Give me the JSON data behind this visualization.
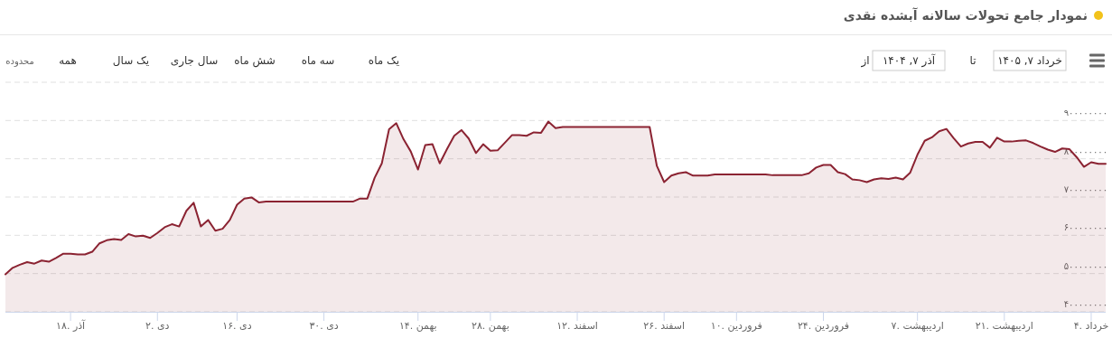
{
  "chart_data": {
    "type": "area",
    "title": "نمودار جامع تحولات سالانه آبشده نقدی",
    "annotations": [
      "از",
      "آذر ۷, ۱۴۰۴",
      "تا",
      "خرداد ۷, ۱۴۰۵",
      "یک ماه",
      "سه ماه",
      "شش ماه",
      "سال جاری",
      "یک سال",
      "همه",
      "محدوده"
    ],
    "color": "#8b2332",
    "grid": "y",
    "categories": [
      null,
      null,
      null,
      null,
      null,
      null,
      null,
      null,
      null,
      "۱۸. آذر",
      null,
      null,
      null,
      null,
      null,
      null,
      null,
      null,
      null,
      null,
      null,
      "۲. دی",
      null,
      null,
      null,
      null,
      null,
      null,
      null,
      null,
      null,
      null,
      "۱۶. دی",
      null,
      null,
      null,
      null,
      null,
      null,
      null,
      null,
      null,
      null,
      null,
      "۳۰. دی",
      null,
      null,
      null,
      null,
      null,
      null,
      null,
      null,
      null,
      null,
      null,
      null,
      "۱۴. بهمن",
      null,
      null,
      null,
      null,
      null,
      null,
      null,
      null,
      null,
      "۲۸. بهمن",
      null,
      null,
      null,
      null,
      null,
      null,
      null,
      null,
      null,
      null,
      null,
      "۱۲. اسفند",
      null,
      null,
      null,
      null,
      null,
      null,
      null,
      null,
      null,
      null,
      null,
      "۲۶. اسفند",
      null,
      null,
      null,
      null,
      null,
      null,
      null,
      null,
      null,
      "۱۰. فروردین",
      null,
      null,
      null,
      null,
      null,
      null,
      null,
      null,
      null,
      null,
      null,
      "۲۴. فروردین",
      null,
      null,
      null,
      null,
      null,
      null,
      null,
      null,
      null,
      null,
      null,
      null,
      "۷. اردیبهشت",
      null,
      null,
      null,
      null,
      null,
      null,
      null,
      null,
      null,
      null,
      null,
      "۲۱. اردیبهشت",
      null,
      null,
      null,
      null,
      null,
      null,
      null,
      null,
      null,
      null,
      null,
      "۴. خرداد",
      null,
      null
    ],
    "ylim": [
      400000000,
      1000000000
    ],
    "yticks": [
      {
        "value": 400000000,
        "label": "۴۰۰۰۰۰۰۰۰"
      },
      {
        "value": 500000000,
        "label": "۵۰۰۰۰۰۰۰۰"
      },
      {
        "value": 600000000,
        "label": "۶۰۰۰۰۰۰۰۰"
      },
      {
        "value": 700000000,
        "label": "۷۰۰۰۰۰۰۰۰"
      },
      {
        "value": 800000000,
        "label": "۸۰۰۰۰۰۰۰۰"
      },
      {
        "value": 900000000,
        "label": "۹۰۰۰۰۰۰۰۰"
      },
      {
        "value": 1000000000,
        "label": null
      }
    ],
    "values": [
      498000000,
      515000000,
      523000000,
      530000000,
      526000000,
      534000000,
      531000000,
      541000000,
      552000000,
      552000000,
      550000000,
      550000000,
      557000000,
      579000000,
      587000000,
      590000000,
      588000000,
      603000000,
      597000000,
      599000000,
      593000000,
      606000000,
      621000000,
      629000000,
      623000000,
      664000000,
      685000000,
      623000000,
      640000000,
      612000000,
      617000000,
      640000000,
      680000000,
      696000000,
      699000000,
      686000000,
      688000000,
      688000000,
      688000000,
      688000000,
      688000000,
      688000000,
      688000000,
      688000000,
      688000000,
      688000000,
      688000000,
      688000000,
      688000000,
      696000000,
      696000000,
      750000000,
      788000000,
      877000000,
      893000000,
      851000000,
      819000000,
      772000000,
      836000000,
      838000000,
      788000000,
      825000000,
      860000000,
      875000000,
      853000000,
      815000000,
      838000000,
      821000000,
      822000000,
      842000000,
      862000000,
      862000000,
      860000000,
      869000000,
      868000000,
      897000000,
      880000000,
      883000000,
      883000000,
      883000000,
      883000000,
      883000000,
      883000000,
      883000000,
      883000000,
      883000000,
      883000000,
      883000000,
      883000000,
      883000000,
      781000000,
      739000000,
      756000000,
      762000000,
      765000000,
      756000000,
      756000000,
      756000000,
      759000000,
      759000000,
      759000000,
      759000000,
      759000000,
      759000000,
      759000000,
      759000000,
      757000000,
      757000000,
      757000000,
      757000000,
      757000000,
      762000000,
      777000000,
      784000000,
      784000000,
      765000000,
      760000000,
      746000000,
      744000000,
      739000000,
      746000000,
      749000000,
      747000000,
      751000000,
      746000000,
      764000000,
      811000000,
      847000000,
      856000000,
      872000000,
      878000000,
      854000000,
      832000000,
      840000000,
      844000000,
      844000000,
      829000000,
      855000000,
      845000000,
      845000000,
      847000000,
      848000000,
      841000000,
      832000000,
      824000000,
      818000000,
      827000000,
      825000000,
      804000000,
      779000000,
      791000000,
      787000000,
      787000000
    ]
  }
}
